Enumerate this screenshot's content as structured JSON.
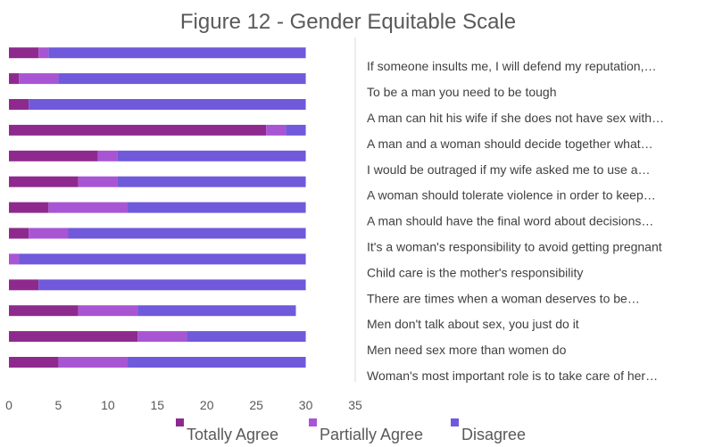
{
  "chart_data": {
    "type": "bar",
    "orientation": "horizontal",
    "stacked": true,
    "title": "Figure 12 - Gender Equitable Scale",
    "xlim": [
      0,
      35
    ],
    "x_ticks": [
      0,
      5,
      10,
      15,
      20,
      25,
      30,
      35
    ],
    "grid": false,
    "legend_position": "bottom",
    "categories": [
      "Woman's most important role is to take care of her…",
      "Men need sex more than women do",
      "Men don't talk about sex, you just do it",
      "There are times when a woman deserves to be…",
      "Child care is the mother's responsibility",
      "It's a woman's responsibility to avoid getting pregnant",
      "A man should have the final word about decisions…",
      "A woman should tolerate violence in order to keep…",
      "I would be outraged if my wife asked me to use a…",
      "A man and a woman should decide together what…",
      "A man can hit his wife if she does not have sex with…",
      "To be a man you need to be tough",
      "If someone insults me, I will defend my reputation,…"
    ],
    "series": [
      {
        "name": "Totally Agree",
        "color": "#8e2a8e",
        "values": [
          5,
          13,
          7,
          3,
          0,
          2,
          4,
          7,
          9,
          26,
          2,
          1,
          3
        ]
      },
      {
        "name": "Partially Agree",
        "color": "#a855d4",
        "values": [
          7,
          5,
          6,
          0,
          1,
          4,
          8,
          4,
          2,
          2,
          0,
          4,
          1
        ]
      },
      {
        "name": "Disagree",
        "color": "#7059db",
        "values": [
          18,
          12,
          16,
          27,
          29,
          24,
          18,
          19,
          19,
          2,
          28,
          25,
          26
        ]
      }
    ]
  }
}
